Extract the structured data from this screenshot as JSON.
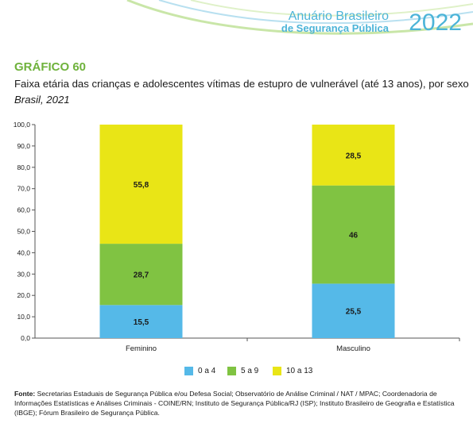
{
  "header": {
    "brand_line1": "Anuário Brasileiro",
    "brand_line2": "de Segurança Pública",
    "brand_year": "2022"
  },
  "figure": {
    "label": "GRÁFICO 60",
    "title": "Faixa etária das crianças e adolescentes vítimas de estupro de vulnerável (até 13 anos), por sexo",
    "subtitle": "Brasil, 2021"
  },
  "chart_data": {
    "type": "bar",
    "stacked": true,
    "categories": [
      "Feminino",
      "Masculino"
    ],
    "series": [
      {
        "name": "0 a 4",
        "values": [
          15.5,
          25.5
        ],
        "labels": [
          "15,5",
          "25,5"
        ],
        "color": "#55b9e8"
      },
      {
        "name": "5 a 9",
        "values": [
          28.7,
          46
        ],
        "labels": [
          "28,7",
          "46"
        ],
        "color": "#80c342"
      },
      {
        "name": "10 a 13",
        "values": [
          55.8,
          28.5
        ],
        "labels": [
          "55,8",
          "28,5"
        ],
        "color": "#e9e516"
      }
    ],
    "ylim": [
      0,
      100
    ],
    "yticks": [
      "0,0",
      "10,0",
      "20,0",
      "30,0",
      "40,0",
      "50,0",
      "60,0",
      "70,0",
      "80,0",
      "90,0",
      "100,0"
    ],
    "xlabel": "",
    "ylabel": "",
    "grid": false,
    "legend_position": "bottom"
  },
  "source": {
    "label": "Fonte:",
    "text": "Secretarias Estaduais de Segurança Pública e/ou Defesa Social; Observatório de Análise Criminal / NAT / MPAC; Coordenadoria de Informações Estatísticas e Análises Criminais - COINE/RN; Instituto de Segurança Pública/RJ (ISP); Instituto Brasileiro de Geografia e Estatística (IBGE); Fórum Brasileiro de Segurança Pública."
  }
}
